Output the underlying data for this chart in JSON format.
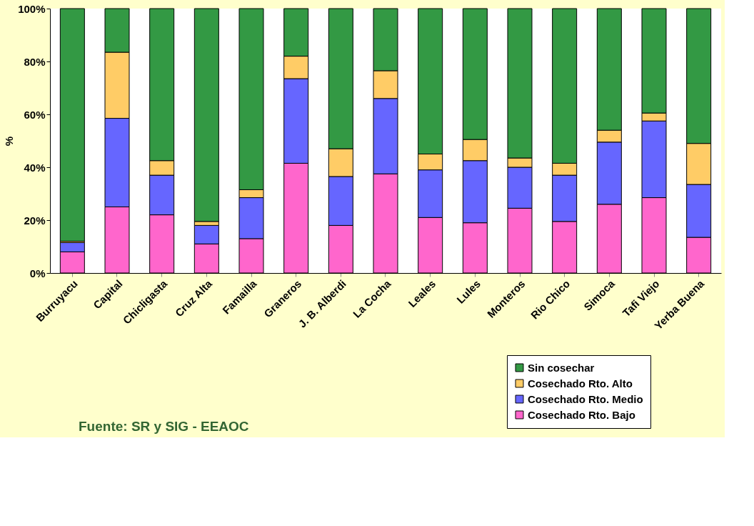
{
  "chart_data": {
    "type": "bar",
    "stacked": true,
    "ylabel": "%",
    "categories": [
      "Burruyacu",
      "Capital",
      "Chicligasta",
      "Cruz Alta",
      "Famailla",
      "Graneros",
      "J. B. Alberdi",
      "La Cocha",
      "Leales",
      "Lules",
      "Monteros",
      "Rio Chico",
      "Simoca",
      "Tafi Viejo",
      "Yerba Buena"
    ],
    "series": [
      {
        "name": "Cosechado Rto. Bajo",
        "color": "#ff66cc",
        "values": [
          8,
          25,
          22,
          11,
          13,
          41.5,
          18,
          37.5,
          21,
          19,
          24.5,
          19.5,
          26,
          28.5,
          13.5
        ]
      },
      {
        "name": "Cosechado Rto. Medio",
        "color": "#6666ff",
        "values": [
          3.5,
          33.5,
          15,
          7,
          15.5,
          32,
          18.5,
          28.5,
          18,
          23.5,
          15.5,
          17.5,
          23.5,
          29,
          20
        ]
      },
      {
        "name": "Cosechado Rto. Alto",
        "color": "#ffcc66",
        "values": [
          0.5,
          25,
          5.5,
          1.5,
          3,
          8.5,
          10.5,
          10.5,
          6,
          8,
          3.5,
          4.5,
          4.5,
          3,
          15.5
        ]
      },
      {
        "name": "Sin cosechar",
        "color": "#339944",
        "values": [
          88,
          16.5,
          57.5,
          80.5,
          68.5,
          18,
          53,
          23.5,
          55,
          49.5,
          56.5,
          58.5,
          46,
          39.5,
          51
        ]
      }
    ],
    "ylim": [
      0,
      100
    ],
    "yticks": [
      {
        "value": 0,
        "label": "0%"
      },
      {
        "value": 20,
        "label": "20%"
      },
      {
        "value": 40,
        "label": "40%"
      },
      {
        "value": 60,
        "label": "60%"
      },
      {
        "value": 80,
        "label": "80%"
      },
      {
        "value": 100,
        "label": "100%"
      }
    ],
    "grid": false,
    "legend": "bottom right",
    "annotations": [
      "Fuente: SR y SIG - EEAOC"
    ]
  }
}
